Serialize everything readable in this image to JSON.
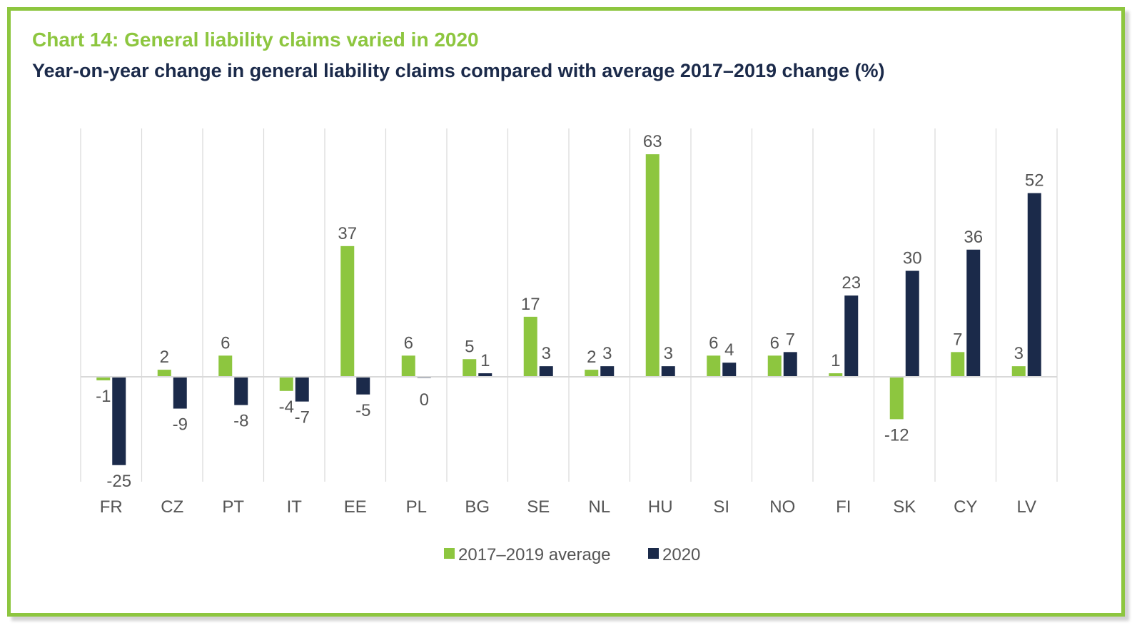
{
  "chart_data": {
    "type": "bar",
    "title": "Chart 14: General liability claims varied in 2020",
    "subtitle": "Year-on-year change in general liability claims compared with average 2017–2019 change (%)",
    "categories": [
      "FR",
      "CZ",
      "PT",
      "IT",
      "EE",
      "PL",
      "BG",
      "SE",
      "NL",
      "HU",
      "SI",
      "NO",
      "FI",
      "SK",
      "CY",
      "LV"
    ],
    "series": [
      {
        "name": "2017–2019 average",
        "color": "#8dc63f",
        "values": [
          -1,
          2,
          6,
          -4,
          37,
          6,
          5,
          17,
          2,
          63,
          6,
          6,
          1,
          -12,
          7,
          3
        ]
      },
      {
        "name": "2020",
        "color": "#1b2a4a",
        "values": [
          -25,
          -9,
          -8,
          -7,
          -5,
          0,
          1,
          3,
          3,
          3,
          4,
          7,
          23,
          30,
          36,
          52
        ]
      }
    ],
    "ylim": [
      -30,
      70
    ],
    "gridlines": "vertical category separators",
    "legend_position": "bottom-center"
  }
}
